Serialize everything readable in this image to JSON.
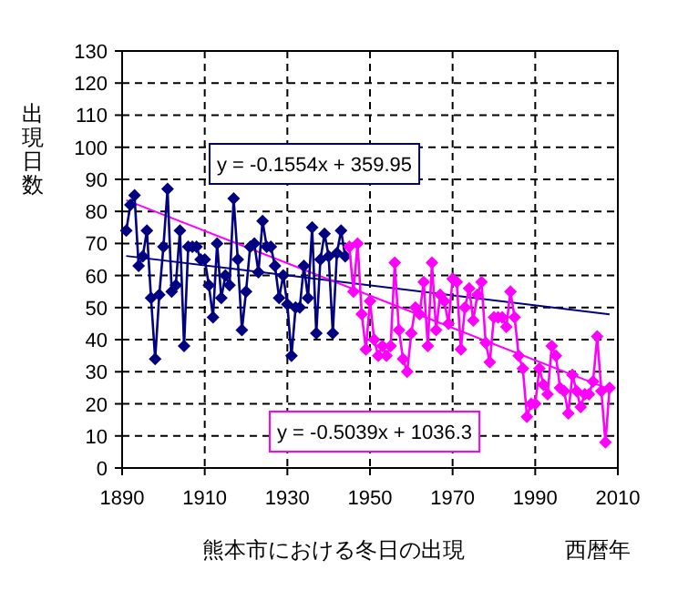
{
  "chart_data": {
    "type": "line",
    "title": "熊本市における冬日の出現",
    "xlabel": "西暦年",
    "ylabel": "出現日数",
    "xlim": [
      1890,
      2010
    ],
    "xticks": [
      1890,
      1910,
      1930,
      1950,
      1970,
      1990,
      2010
    ],
    "ylim": [
      0,
      130
    ],
    "yticks": [
      0,
      10,
      20,
      30,
      40,
      50,
      60,
      70,
      80,
      90,
      100,
      110,
      120,
      130
    ],
    "grid": true,
    "series": [
      {
        "color": "#000080",
        "marker": "diamond",
        "x": [
          1891,
          1892,
          1893,
          1894,
          1895,
          1896,
          1897,
          1898,
          1899,
          1900,
          1901,
          1902,
          1903,
          1904,
          1905,
          1906,
          1907,
          1908,
          1909,
          1910,
          1911,
          1912,
          1913,
          1914,
          1915,
          1916,
          1917,
          1918,
          1919,
          1920,
          1921,
          1922,
          1923,
          1924,
          1925,
          1926,
          1927,
          1928,
          1929,
          1930,
          1931,
          1932,
          1933,
          1934,
          1935,
          1936,
          1937,
          1938,
          1939,
          1940,
          1941,
          1942,
          1943,
          1944
        ],
        "values": [
          74,
          82,
          85,
          63,
          66,
          74,
          53,
          34,
          54,
          69,
          87,
          55,
          57,
          74,
          38,
          69,
          69,
          69,
          65,
          65,
          57,
          47,
          70,
          53,
          60,
          57,
          84,
          65,
          43,
          55,
          69,
          70,
          61,
          77,
          69,
          69,
          63,
          53,
          60,
          51,
          35,
          50,
          50,
          63,
          53,
          75,
          42,
          65,
          73,
          66,
          42,
          67,
          74,
          66
        ]
      },
      {
        "color": "#ff00ff",
        "marker": "diamond",
        "x": [
          1945,
          1946,
          1947,
          1948,
          1949,
          1950,
          1951,
          1952,
          1953,
          1954,
          1955,
          1956,
          1957,
          1958,
          1959,
          1960,
          1961,
          1962,
          1963,
          1964,
          1965,
          1966,
          1967,
          1968,
          1969,
          1970,
          1971,
          1972,
          1973,
          1974,
          1975,
          1976,
          1977,
          1978,
          1979,
          1980,
          1981,
          1982,
          1983,
          1984,
          1985,
          1986,
          1987,
          1988,
          1989,
          1990,
          1991,
          1992,
          1993,
          1994,
          1995,
          1996,
          1997,
          1998,
          1999,
          2000,
          2001,
          2002,
          2003,
          2004,
          2005,
          2006,
          2007,
          2008
        ],
        "values": [
          69,
          55,
          70,
          48,
          37,
          52,
          40,
          35,
          38,
          35,
          38,
          64,
          43,
          34,
          30,
          42,
          50,
          48,
          58,
          38,
          64,
          43,
          54,
          52,
          45,
          59,
          58,
          37,
          50,
          56,
          46,
          54,
          58,
          39,
          33,
          47,
          47,
          47,
          44,
          55,
          47,
          35,
          31,
          16,
          20,
          20,
          31,
          26,
          23,
          38,
          35,
          25,
          24,
          17,
          29,
          24,
          19,
          23,
          23,
          27,
          41,
          24,
          8,
          25
        ]
      },
      {
        "type": "line",
        "color": "#000080",
        "marker": "none",
        "x": [
          1891,
          2008
        ],
        "values": [
          66.1,
          47.9
        ]
      },
      {
        "type": "line",
        "color": "#ff00ff",
        "marker": "none",
        "x": [
          1891,
          2008
        ],
        "values": [
          83.5,
          24.5
        ]
      }
    ],
    "annotations": [
      "y = -0.1554x + 359.95",
      "y = -0.5039x + 1036.3"
    ]
  }
}
